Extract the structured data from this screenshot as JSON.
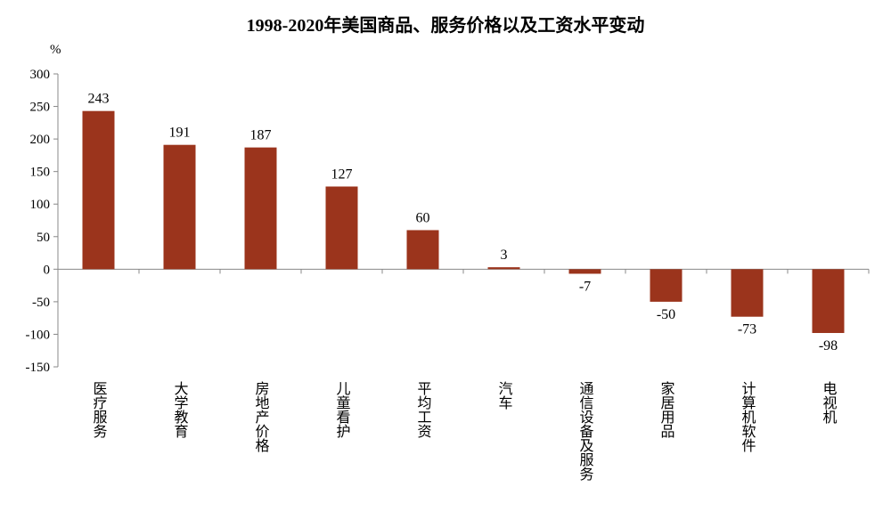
{
  "chart_data": {
    "type": "bar",
    "title": "1998-2020年美国商品、服务价格以及工资水平变动",
    "ylabel": "%",
    "xlabel": "",
    "ylim": [
      -150,
      300
    ],
    "yticks": [
      300,
      250,
      200,
      150,
      100,
      50,
      0,
      -50,
      -100,
      -150
    ],
    "grid": false,
    "categories": [
      "医疗服务",
      "大学教育",
      "房地产价格",
      "儿童看护",
      "平均工资",
      "汽车",
      "通信设备及服务",
      "家居用品",
      "计算机软件",
      "电视机"
    ],
    "values": [
      243,
      191,
      187,
      127,
      60,
      3,
      -7,
      -50,
      -73,
      -98
    ],
    "color": "#9b341c"
  }
}
